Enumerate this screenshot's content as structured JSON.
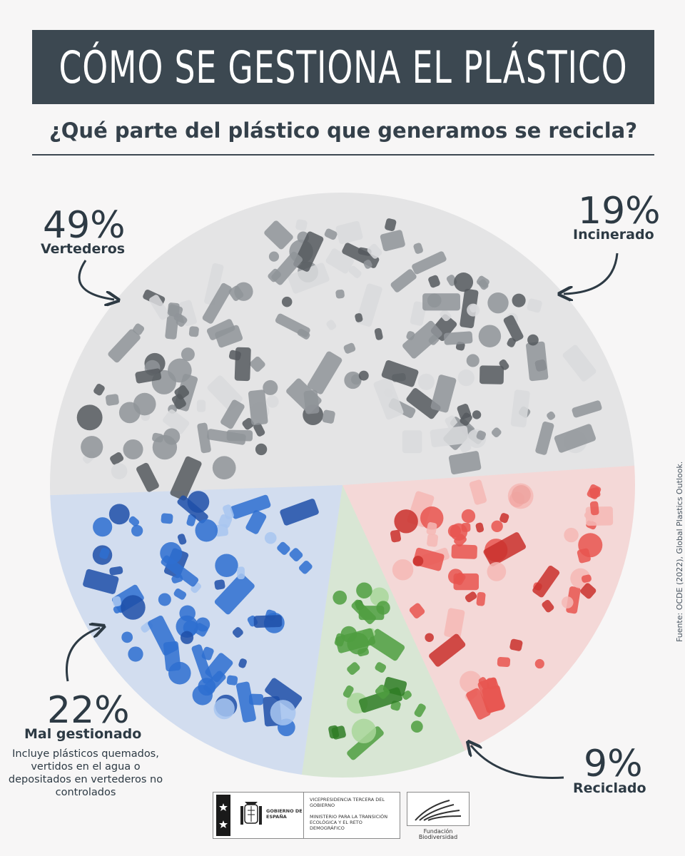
{
  "header": {
    "title": "CÓMO SE GESTIONA EL PLÁSTICO",
    "subtitle": "¿Qué parte del plástico que generamos se recicla?"
  },
  "chart_data": {
    "type": "pie",
    "title": "CÓMO SE GESTIONA EL PLÁSTICO",
    "subtitle": "¿Qué parte del plástico que generamos se recicla?",
    "slices": [
      {
        "label": "Vertederos",
        "value": 49,
        "value_label": "49%",
        "color": "#8f9499"
      },
      {
        "label": "Incinerado",
        "value": 19,
        "value_label": "19%",
        "color": "#e8554f"
      },
      {
        "label": "Reciclado",
        "value": 9,
        "value_label": "9%",
        "color": "#4f9e3f"
      },
      {
        "label": "Mal gestionado",
        "value": 22,
        "value_label": "22%",
        "color": "#2e6fd0",
        "note": "Incluye plásticos quemados, vertidos en el agua o depositados en vertederos no controlados"
      }
    ],
    "legend": "none"
  },
  "source": "Fuente: OCDE (2022), Global Plastics Outlook.",
  "logos": {
    "gobierno": "GOBIERNO DE ESPAÑA",
    "vicepresidencia": "VICEPRESIDENCIA TERCERA DEL GOBIERNO",
    "ministerio": "MINISTERIO PARA LA TRANSICIÓN ECOLÓGICA Y EL RETO DEMOGRÁFICO",
    "fundacion": "Fundación Biodiversidad"
  }
}
